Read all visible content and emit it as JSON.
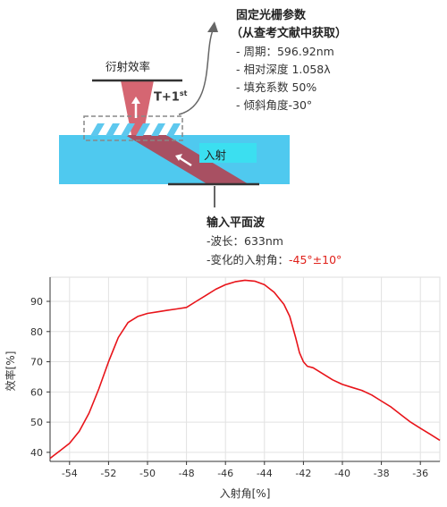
{
  "diagram": {
    "diffraction_label": "衍射效率",
    "order_label": "T+1",
    "order_sup": "st",
    "incidence_label": "入射",
    "grating_params": {
      "title": "固定光栅参数",
      "subtitle": "（从查考文献中获取）",
      "items": [
        "- 周期：596.92nm",
        "- 相对深度 1.058λ",
        "- 填充系数 50%",
        "- 倾斜角度-30°"
      ]
    },
    "input_wave": {
      "title": "输入平面波",
      "wavelength": "-波长：633nm",
      "angle_prefix": "-变化的入射角：",
      "angle_value": "-45°±10°"
    },
    "colors": {
      "glass": "#4fc9ef",
      "beam": "#c94f5b",
      "highlight": "#3bdff0",
      "curve": "#e8141a"
    }
  },
  "chart_data": {
    "type": "line",
    "title": "",
    "xlabel": "入射角[%]",
    "ylabel": "效率[%]",
    "xlim": [
      -55,
      -35
    ],
    "ylim": [
      37,
      98
    ],
    "xticks": [
      -54,
      -52,
      -50,
      -48,
      -46,
      -44,
      -42,
      -40,
      -38,
      -36
    ],
    "yticks": [
      40,
      50,
      60,
      70,
      80,
      90
    ],
    "grid": true,
    "series": [
      {
        "name": "",
        "x": [
          -55,
          -54.5,
          -54,
          -53.5,
          -53,
          -52.5,
          -52,
          -51.5,
          -51,
          -50.5,
          -50,
          -49.5,
          -49,
          -48.5,
          -48,
          -47.5,
          -47,
          -46.5,
          -46,
          -45.5,
          -45,
          -44.5,
          -44,
          -43.5,
          -43,
          -42.7,
          -42.4,
          -42.2,
          -42,
          -41.8,
          -41.5,
          -41,
          -40.5,
          -40,
          -39.5,
          -39,
          -38.5,
          -38,
          -37.5,
          -37,
          -36.5,
          -36,
          -35.5,
          -35
        ],
        "y": [
          38,
          40.5,
          43,
          47,
          53,
          61,
          70,
          78,
          83,
          85,
          86,
          86.5,
          87,
          87.5,
          88,
          90,
          92,
          94,
          95.5,
          96.5,
          97,
          96.7,
          95.5,
          93,
          89,
          85,
          78,
          73,
          70,
          68.5,
          68,
          66,
          64,
          62.5,
          61.5,
          60.5,
          59,
          57,
          55,
          52.5,
          50,
          48,
          46,
          44
        ]
      }
    ]
  }
}
